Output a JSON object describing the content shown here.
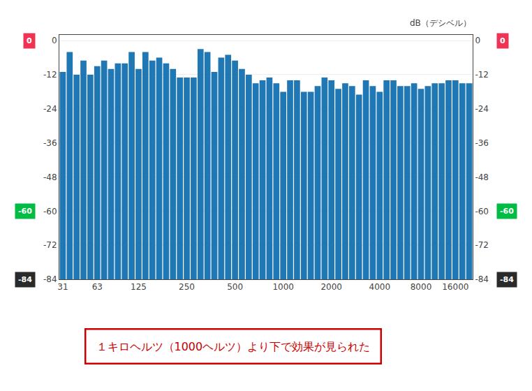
{
  "chart_data": {
    "type": "bar",
    "categories": [
      "31",
      null,
      null,
      null,
      null,
      "63",
      null,
      null,
      null,
      null,
      null,
      "125",
      null,
      null,
      null,
      null,
      null,
      null,
      "250",
      null,
      null,
      null,
      null,
      null,
      null,
      "500",
      null,
      null,
      null,
      null,
      null,
      null,
      "1000",
      null,
      null,
      null,
      null,
      null,
      null,
      "2000",
      null,
      null,
      null,
      null,
      null,
      null,
      "4000",
      null,
      null,
      null,
      null,
      null,
      "8000",
      null,
      null,
      null,
      null,
      "16000",
      null,
      null
    ],
    "values": [
      -11,
      -4,
      -12,
      -7,
      -12,
      -9,
      -7,
      -10,
      -8,
      -8,
      -4,
      -10,
      -4,
      -7,
      -6,
      -8,
      -10,
      -13,
      -13,
      -13,
      -3,
      -4,
      -11,
      -6,
      -5,
      -7,
      -10,
      -12,
      -15,
      -14,
      -13,
      -15,
      -18,
      -14,
      -14,
      -18,
      -18,
      -16,
      -13,
      -14,
      -17,
      -15,
      -16,
      -19,
      -14,
      -16,
      -18,
      -14,
      -14,
      -16,
      -16,
      -15,
      -17,
      -16,
      -15,
      -15,
      -14,
      -14,
      -15,
      -15
    ],
    "ylim": [
      -84,
      2
    ],
    "yticks": [
      0,
      -12,
      -24,
      -36,
      -48,
      -60,
      -72,
      -84
    ],
    "y2lim": [
      -84,
      2
    ],
    "y2ticks": [
      0,
      -12,
      -24,
      -36,
      -48,
      -60,
      -72,
      -84
    ],
    "y2label": "dB（デシベル）",
    "grid": true,
    "annotations": [
      {
        "text": "0",
        "y": 0,
        "color": "#ee3355"
      },
      {
        "text": "-60",
        "y": -60,
        "color": "#00bb44"
      },
      {
        "text": "-84",
        "y": -84,
        "color": "#2a2a2a"
      },
      {
        "text": "１キロヘルツ（1000ヘルツ）より下で効果が見られた",
        "color": "#cc0000"
      }
    ]
  }
}
